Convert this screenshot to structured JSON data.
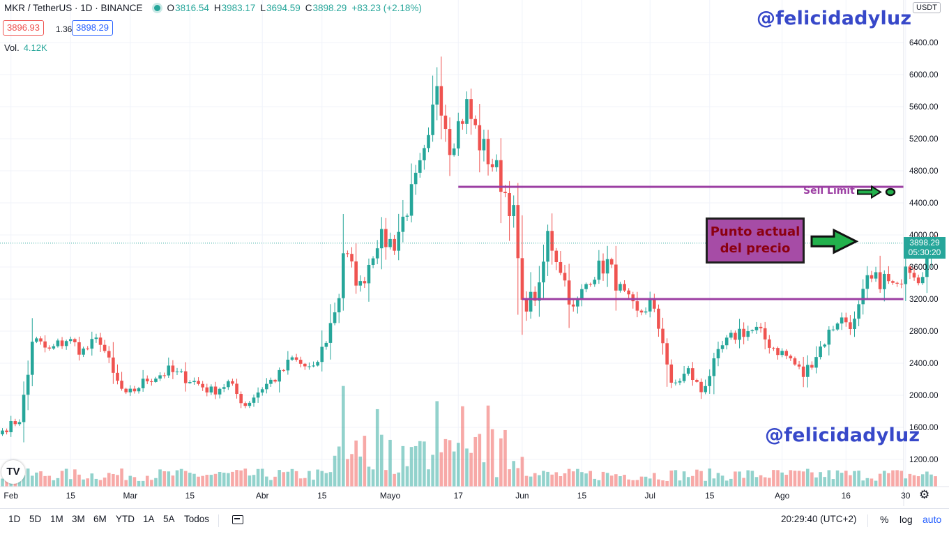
{
  "legend": {
    "symbol": "MKR / TetherUS · 1D · BINANCE",
    "o_label": "O",
    "o": "3816.54",
    "h_label": "H",
    "h": "3983.17",
    "l_label": "L",
    "l": "3694.59",
    "c_label": "C",
    "c": "3898.29",
    "change": "+83.23 (+2.18%)",
    "status_color": "#26a69a"
  },
  "quote": {
    "bid": "3896.93",
    "spread": "1.36",
    "ask": "3898.29"
  },
  "volume": {
    "label": "Vol.",
    "value": "4.12K"
  },
  "watermark": "@felicidadyluz",
  "currency": "USDT",
  "current_price": {
    "price": "3898.29",
    "countdown": "05:30:20"
  },
  "annotation": {
    "line1": "Punto actual",
    "line2": "del precio"
  },
  "sell_label": "Sell Limit",
  "logo": "TV",
  "toolbar": {
    "timeframes": [
      "1D",
      "5D",
      "1M",
      "3M",
      "6M",
      "YTD",
      "1A",
      "5A",
      "Todos"
    ],
    "time": "20:29:40 (UTC+2)",
    "percent": "%",
    "log": "log",
    "auto": "auto"
  },
  "colors": {
    "up": "#26a69a",
    "down": "#ef5350",
    "level_line": "#9c3fa3",
    "arrow": "#22b14c",
    "watermark": "#3748c9"
  },
  "chart_data": {
    "type": "candlestick",
    "title": "MKR / TetherUS · 1D · BINANCE",
    "xlabel": "",
    "ylabel": "",
    "ylim": [
      1000,
      6550
    ],
    "y_ticks": [
      1200,
      1600,
      2000,
      2400,
      2800,
      3200,
      3600,
      4000,
      4400,
      4800,
      5200,
      5600,
      6000,
      6400
    ],
    "y_tick_labels": [
      "1200.00",
      "1600.00",
      "2000.00",
      "2400.00",
      "2800.00",
      "3200.00",
      "3600.00",
      "4000.00",
      "4400.00",
      "4800.00",
      "5200.00",
      "5600.00",
      "6000.00",
      "6400.00"
    ],
    "x_tick_labels": [
      "Feb",
      "15",
      "Mar",
      "15",
      "Abr",
      "15",
      "Mayo",
      "17",
      "Jun",
      "15",
      "Jul",
      "15",
      "Ago",
      "16",
      "30"
    ],
    "x_tick_dates": [
      "2021-02-01",
      "2021-02-15",
      "2021-03-01",
      "2021-03-15",
      "2021-04-01",
      "2021-04-15",
      "2021-05-01",
      "2021-05-17",
      "2021-06-01",
      "2021-06-15",
      "2021-07-01",
      "2021-07-15",
      "2021-08-01",
      "2021-08-16",
      "2021-08-30"
    ],
    "start_date": "2021-01-30",
    "anchors": [
      {
        "date": "2021-01-30",
        "close": 1560
      },
      {
        "date": "2021-02-03",
        "close": 1700
      },
      {
        "date": "2021-02-05",
        "close": 2250
      },
      {
        "date": "2021-02-06",
        "close": 2700
      },
      {
        "date": "2021-02-10",
        "close": 2550
      },
      {
        "date": "2021-02-14",
        "close": 2700
      },
      {
        "date": "2021-02-18",
        "close": 2550
      },
      {
        "date": "2021-02-22",
        "close": 2700
      },
      {
        "date": "2021-02-25",
        "close": 2250
      },
      {
        "date": "2021-02-28",
        "close": 1980
      },
      {
        "date": "2021-03-05",
        "close": 2200
      },
      {
        "date": "2021-03-10",
        "close": 2300
      },
      {
        "date": "2021-03-15",
        "close": 2200
      },
      {
        "date": "2021-03-20",
        "close": 2050
      },
      {
        "date": "2021-03-24",
        "close": 2150
      },
      {
        "date": "2021-03-28",
        "close": 1880
      },
      {
        "date": "2021-04-01",
        "close": 2100
      },
      {
        "date": "2021-04-05",
        "close": 2250
      },
      {
        "date": "2021-04-08",
        "close": 2450
      },
      {
        "date": "2021-04-13",
        "close": 2300
      },
      {
        "date": "2021-04-16",
        "close": 2700
      },
      {
        "date": "2021-04-19",
        "close": 3250
      },
      {
        "date": "2021-04-20",
        "close": 3800
      },
      {
        "date": "2021-04-24",
        "close": 3350
      },
      {
        "date": "2021-04-28",
        "close": 3950
      },
      {
        "date": "2021-05-02",
        "close": 3900
      },
      {
        "date": "2021-05-06",
        "close": 4500
      },
      {
        "date": "2021-05-10",
        "close": 5100
      },
      {
        "date": "2021-05-12",
        "close": 5950
      },
      {
        "date": "2021-05-15",
        "close": 5150
      },
      {
        "date": "2021-05-19",
        "close": 5600
      },
      {
        "date": "2021-05-22",
        "close": 5150
      },
      {
        "date": "2021-05-26",
        "close": 4800
      },
      {
        "date": "2021-05-30",
        "close": 4250
      },
      {
        "date": "2021-06-01",
        "close": 3100
      },
      {
        "date": "2021-06-05",
        "close": 3300
      },
      {
        "date": "2021-06-07",
        "close": 4000
      },
      {
        "date": "2021-06-10",
        "close": 3600
      },
      {
        "date": "2021-06-13",
        "close": 3050
      },
      {
        "date": "2021-06-17",
        "close": 3500
      },
      {
        "date": "2021-06-21",
        "close": 3650
      },
      {
        "date": "2021-06-24",
        "close": 3300
      },
      {
        "date": "2021-06-28",
        "close": 3000
      },
      {
        "date": "2021-07-01",
        "close": 3150
      },
      {
        "date": "2021-07-04",
        "close": 2700
      },
      {
        "date": "2021-07-06",
        "close": 2100
      },
      {
        "date": "2021-07-10",
        "close": 2300
      },
      {
        "date": "2021-07-13",
        "close": 2050
      },
      {
        "date": "2021-07-18",
        "close": 2600
      },
      {
        "date": "2021-07-22",
        "close": 2800
      },
      {
        "date": "2021-07-26",
        "close": 2800
      },
      {
        "date": "2021-07-30",
        "close": 2600
      },
      {
        "date": "2021-08-03",
        "close": 2450
      },
      {
        "date": "2021-08-06",
        "close": 2250
      },
      {
        "date": "2021-08-10",
        "close": 2600
      },
      {
        "date": "2021-08-14",
        "close": 2950
      },
      {
        "date": "2021-08-18",
        "close": 2900
      },
      {
        "date": "2021-08-21",
        "close": 3400
      },
      {
        "date": "2021-08-25",
        "close": 3450
      },
      {
        "date": "2021-08-28",
        "close": 3300
      },
      {
        "date": "2021-08-30",
        "close": 3700
      },
      {
        "date": "2021-09-02",
        "close": 3500
      },
      {
        "date": "2021-09-06",
        "close": 3898.29
      }
    ],
    "levels": [
      {
        "label": "Sell Limit",
        "price": 4600,
        "from": "2021-05-17",
        "to": "2021-09-28"
      },
      {
        "label": "",
        "price": 3200,
        "from": "2021-06-01",
        "to": "2021-09-28"
      }
    ],
    "current_price": 3898.29,
    "volume": {
      "series": "daily volume (histogram)",
      "max_bar_price_units": 2400
    }
  }
}
